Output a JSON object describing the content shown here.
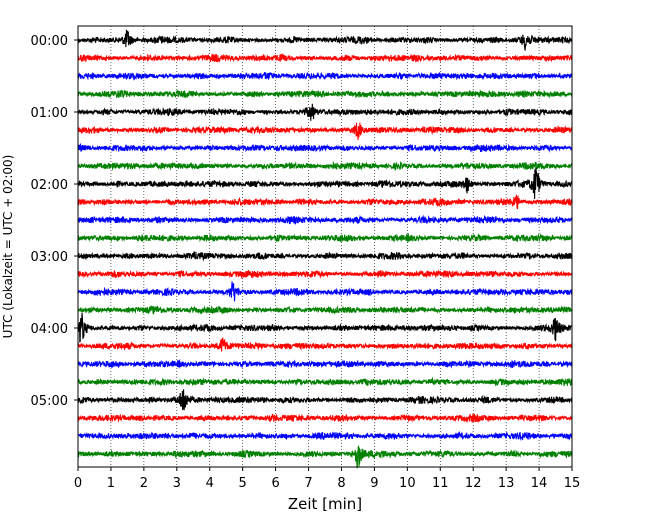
{
  "chart_data": {
    "type": "line",
    "title": "",
    "xlabel": "Zeit  [min]",
    "ylabel": "UTC (Lokalzeit = UTC + 02:00)",
    "x_ticks": [
      "0",
      "1",
      "2",
      "3",
      "4",
      "5",
      "6",
      "7",
      "8",
      "9",
      "10",
      "11",
      "12",
      "13",
      "14",
      "15"
    ],
    "xlim": [
      0,
      15
    ],
    "y_ticks": [
      "00:00",
      "01:00",
      "02:00",
      "03:00",
      "04:00",
      "05:00"
    ],
    "trace_interval_minutes": 15,
    "trace_count": 24,
    "trace_colors": [
      "#000000",
      "#ff0000",
      "#0000ff",
      "#008000"
    ],
    "vertical_grid": "dotted",
    "events": [
      {
        "trace": 0,
        "x": 1.5,
        "amplitude": 1.5
      },
      {
        "trace": 0,
        "x": 13.6,
        "amplitude": 1.4
      },
      {
        "trace": 4,
        "x": 7.1,
        "amplitude": 1.3
      },
      {
        "trace": 5,
        "x": 8.5,
        "amplitude": 1.2
      },
      {
        "trace": 8,
        "x": 11.8,
        "amplitude": 1.3
      },
      {
        "trace": 8,
        "x": 13.9,
        "amplitude": 3.0
      },
      {
        "trace": 9,
        "x": 13.3,
        "amplitude": 1.2
      },
      {
        "trace": 14,
        "x": 4.7,
        "amplitude": 1.5
      },
      {
        "trace": 16,
        "x": 0.1,
        "amplitude": 2.4
      },
      {
        "trace": 16,
        "x": 14.5,
        "amplitude": 1.8
      },
      {
        "trace": 17,
        "x": 4.4,
        "amplitude": 1.2
      },
      {
        "trace": 20,
        "x": 3.2,
        "amplitude": 2.2
      },
      {
        "trace": 23,
        "x": 8.5,
        "amplitude": 2.2
      }
    ]
  }
}
